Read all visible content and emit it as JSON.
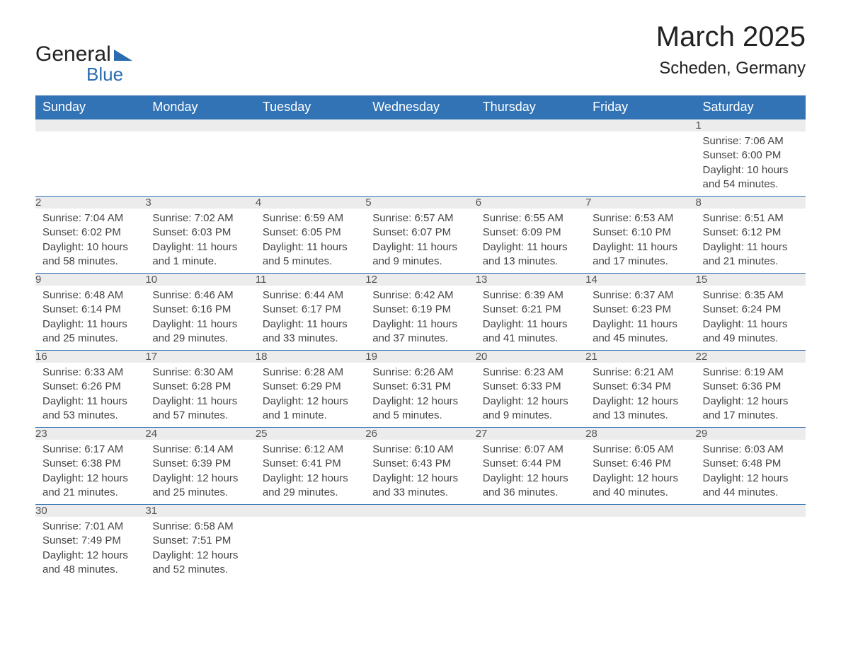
{
  "logo": {
    "word1": "General",
    "word2": "Blue"
  },
  "title": "March 2025",
  "location": "Scheden, Germany",
  "colors": {
    "header_bg": "#3173b5",
    "header_text": "#ffffff",
    "daynum_bg": "#ececec",
    "daynum_border_top": "#3173b5",
    "body_text": "#444444",
    "logo_accent": "#2b6cb0"
  },
  "weekdays": [
    "Sunday",
    "Monday",
    "Tuesday",
    "Wednesday",
    "Thursday",
    "Friday",
    "Saturday"
  ],
  "first_weekday_index": 6,
  "days": [
    {
      "n": 1,
      "sunrise": "7:06 AM",
      "sunset": "6:00 PM",
      "daylight": "10 hours and 54 minutes."
    },
    {
      "n": 2,
      "sunrise": "7:04 AM",
      "sunset": "6:02 PM",
      "daylight": "10 hours and 58 minutes."
    },
    {
      "n": 3,
      "sunrise": "7:02 AM",
      "sunset": "6:03 PM",
      "daylight": "11 hours and 1 minute."
    },
    {
      "n": 4,
      "sunrise": "6:59 AM",
      "sunset": "6:05 PM",
      "daylight": "11 hours and 5 minutes."
    },
    {
      "n": 5,
      "sunrise": "6:57 AM",
      "sunset": "6:07 PM",
      "daylight": "11 hours and 9 minutes."
    },
    {
      "n": 6,
      "sunrise": "6:55 AM",
      "sunset": "6:09 PM",
      "daylight": "11 hours and 13 minutes."
    },
    {
      "n": 7,
      "sunrise": "6:53 AM",
      "sunset": "6:10 PM",
      "daylight": "11 hours and 17 minutes."
    },
    {
      "n": 8,
      "sunrise": "6:51 AM",
      "sunset": "6:12 PM",
      "daylight": "11 hours and 21 minutes."
    },
    {
      "n": 9,
      "sunrise": "6:48 AM",
      "sunset": "6:14 PM",
      "daylight": "11 hours and 25 minutes."
    },
    {
      "n": 10,
      "sunrise": "6:46 AM",
      "sunset": "6:16 PM",
      "daylight": "11 hours and 29 minutes."
    },
    {
      "n": 11,
      "sunrise": "6:44 AM",
      "sunset": "6:17 PM",
      "daylight": "11 hours and 33 minutes."
    },
    {
      "n": 12,
      "sunrise": "6:42 AM",
      "sunset": "6:19 PM",
      "daylight": "11 hours and 37 minutes."
    },
    {
      "n": 13,
      "sunrise": "6:39 AM",
      "sunset": "6:21 PM",
      "daylight": "11 hours and 41 minutes."
    },
    {
      "n": 14,
      "sunrise": "6:37 AM",
      "sunset": "6:23 PM",
      "daylight": "11 hours and 45 minutes."
    },
    {
      "n": 15,
      "sunrise": "6:35 AM",
      "sunset": "6:24 PM",
      "daylight": "11 hours and 49 minutes."
    },
    {
      "n": 16,
      "sunrise": "6:33 AM",
      "sunset": "6:26 PM",
      "daylight": "11 hours and 53 minutes."
    },
    {
      "n": 17,
      "sunrise": "6:30 AM",
      "sunset": "6:28 PM",
      "daylight": "11 hours and 57 minutes."
    },
    {
      "n": 18,
      "sunrise": "6:28 AM",
      "sunset": "6:29 PM",
      "daylight": "12 hours and 1 minute."
    },
    {
      "n": 19,
      "sunrise": "6:26 AM",
      "sunset": "6:31 PM",
      "daylight": "12 hours and 5 minutes."
    },
    {
      "n": 20,
      "sunrise": "6:23 AM",
      "sunset": "6:33 PM",
      "daylight": "12 hours and 9 minutes."
    },
    {
      "n": 21,
      "sunrise": "6:21 AM",
      "sunset": "6:34 PM",
      "daylight": "12 hours and 13 minutes."
    },
    {
      "n": 22,
      "sunrise": "6:19 AM",
      "sunset": "6:36 PM",
      "daylight": "12 hours and 17 minutes."
    },
    {
      "n": 23,
      "sunrise": "6:17 AM",
      "sunset": "6:38 PM",
      "daylight": "12 hours and 21 minutes."
    },
    {
      "n": 24,
      "sunrise": "6:14 AM",
      "sunset": "6:39 PM",
      "daylight": "12 hours and 25 minutes."
    },
    {
      "n": 25,
      "sunrise": "6:12 AM",
      "sunset": "6:41 PM",
      "daylight": "12 hours and 29 minutes."
    },
    {
      "n": 26,
      "sunrise": "6:10 AM",
      "sunset": "6:43 PM",
      "daylight": "12 hours and 33 minutes."
    },
    {
      "n": 27,
      "sunrise": "6:07 AM",
      "sunset": "6:44 PM",
      "daylight": "12 hours and 36 minutes."
    },
    {
      "n": 28,
      "sunrise": "6:05 AM",
      "sunset": "6:46 PM",
      "daylight": "12 hours and 40 minutes."
    },
    {
      "n": 29,
      "sunrise": "6:03 AM",
      "sunset": "6:48 PM",
      "daylight": "12 hours and 44 minutes."
    },
    {
      "n": 30,
      "sunrise": "7:01 AM",
      "sunset": "7:49 PM",
      "daylight": "12 hours and 48 minutes."
    },
    {
      "n": 31,
      "sunrise": "6:58 AM",
      "sunset": "7:51 PM",
      "daylight": "12 hours and 52 minutes."
    }
  ],
  "labels": {
    "sunrise": "Sunrise: ",
    "sunset": "Sunset: ",
    "daylight": "Daylight: "
  }
}
